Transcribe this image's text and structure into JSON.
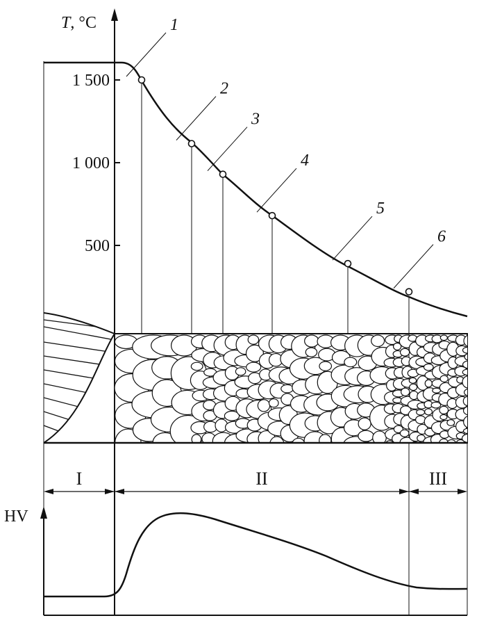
{
  "axes": {
    "temperature_label": "T, °C",
    "temperature_ticks": [
      {
        "value": 1500,
        "label": "1 500"
      },
      {
        "value": 1000,
        "label": "1 000"
      },
      {
        "value": 500,
        "label": "500"
      }
    ],
    "hardness_label": "HV"
  },
  "points": [
    {
      "label": "1",
      "temperature": 1500
    },
    {
      "label": "2",
      "temperature": 1115
    },
    {
      "label": "3",
      "temperature": 930
    },
    {
      "label": "4",
      "temperature": 680
    },
    {
      "label": "5",
      "temperature": 390
    },
    {
      "label": "6",
      "temperature": 220
    }
  ],
  "zones": [
    {
      "label": "I"
    },
    {
      "label": "II"
    },
    {
      "label": "III"
    }
  ],
  "colors": {
    "ink": "#111111",
    "background": "#ffffff"
  }
}
